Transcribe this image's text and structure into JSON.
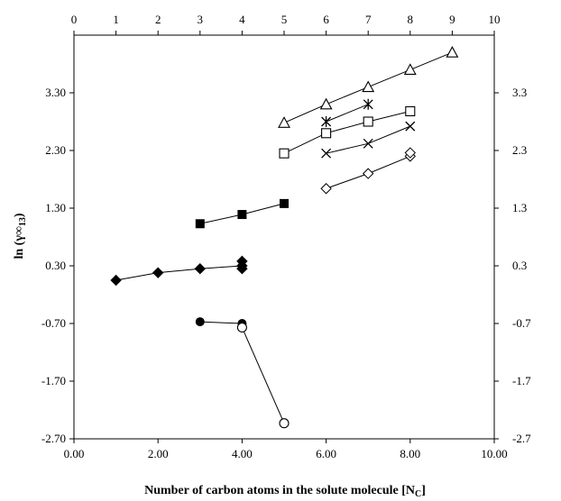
{
  "chart_data": {
    "type": "scatter",
    "xlabel": "Number of carbon atoms in the solute molecule [N",
    "xlabel_sub": "C",
    "xlabel_end": "]",
    "ylabel": "ln (γ∞",
    "ylabel_sub": "13",
    "ylabel_end": ")",
    "xlim": [
      0,
      10
    ],
    "ylim": [
      -2.7,
      4.3
    ],
    "grid": false,
    "legend": "none",
    "x_ticks_bottom": [
      "0.00",
      "2.00",
      "4.00",
      "6.00",
      "8.00",
      "10.00"
    ],
    "x_ticks_top": [
      "0",
      "1",
      "2",
      "3",
      "4",
      "5",
      "6",
      "7",
      "8",
      "9",
      "10"
    ],
    "y_ticks_left": [
      "-2.70",
      "-1.70",
      "-0.70",
      "0.30",
      "1.30",
      "2.30",
      "3.30"
    ],
    "y_ticks_right": [
      "-2.7",
      "-1.7",
      "-0.7",
      "0.3",
      "1.3",
      "2.3",
      "3.3"
    ],
    "series": [
      {
        "marker": "filled-diamond",
        "connected": true,
        "points": [
          [
            1,
            0.05
          ],
          [
            2,
            0.18
          ],
          [
            3,
            0.25
          ],
          [
            4,
            0.3
          ]
        ]
      },
      {
        "marker": "filled-diamond",
        "connected": false,
        "points": [
          [
            4,
            0.38
          ],
          [
            4,
            0.25
          ]
        ]
      },
      {
        "marker": "filled-square",
        "connected": true,
        "points": [
          [
            3,
            1.03
          ],
          [
            4,
            1.19
          ],
          [
            5,
            1.38
          ]
        ]
      },
      {
        "marker": "filled-circle",
        "connected": true,
        "points": [
          [
            3,
            -0.67
          ],
          [
            4,
            -0.7
          ]
        ]
      },
      {
        "marker": "open-circle",
        "connected": true,
        "points": [
          [
            4,
            -0.77
          ],
          [
            5,
            -2.43
          ]
        ]
      },
      {
        "marker": "open-triangle",
        "connected": true,
        "points": [
          [
            5,
            2.78
          ],
          [
            6,
            3.1
          ],
          [
            7,
            3.4
          ],
          [
            8,
            3.7
          ],
          [
            9,
            4.0
          ]
        ]
      },
      {
        "marker": "asterisk",
        "connected": true,
        "points": [
          [
            6,
            2.8
          ],
          [
            7,
            3.1
          ]
        ]
      },
      {
        "marker": "open-square",
        "connected": true,
        "points": [
          [
            5,
            2.25
          ],
          [
            6,
            2.6
          ],
          [
            7,
            2.8
          ],
          [
            8,
            2.98
          ]
        ]
      },
      {
        "marker": "cross",
        "connected": true,
        "points": [
          [
            6,
            2.25
          ],
          [
            7,
            2.42
          ],
          [
            8,
            2.72
          ]
        ]
      },
      {
        "marker": "open-diamond",
        "connected": true,
        "points": [
          [
            6,
            1.64
          ],
          [
            7,
            1.9
          ],
          [
            8,
            2.2
          ]
        ]
      },
      {
        "marker": "open-diamond",
        "connected": false,
        "points": [
          [
            8,
            2.26
          ]
        ]
      }
    ]
  }
}
